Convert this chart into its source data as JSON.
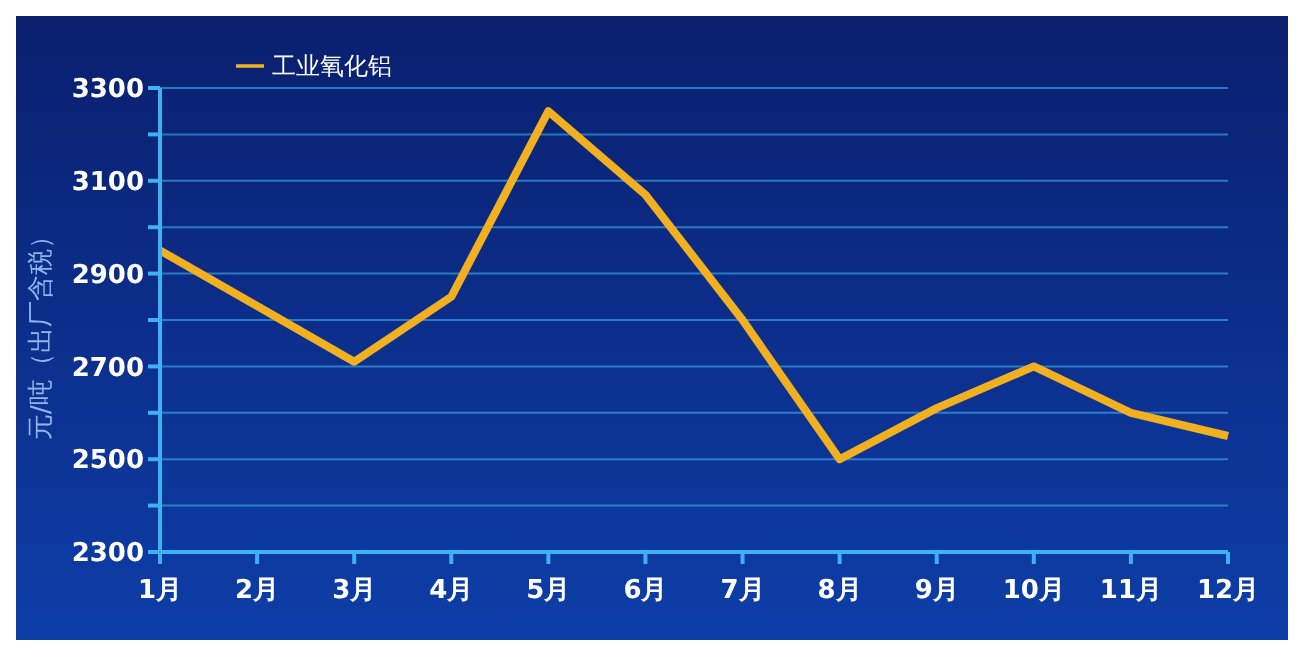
{
  "chart_data": {
    "type": "line",
    "ylabel": "元/吨（出厂含税）",
    "categories": [
      "1月",
      "2月",
      "3月",
      "4月",
      "5月",
      "6月",
      "7月",
      "8月",
      "9月",
      "10月",
      "11月",
      "12月"
    ],
    "series": [
      {
        "name": "工业氧化铝",
        "color": "#f0b020",
        "values": [
          2950,
          2830,
          2710,
          2850,
          3250,
          3070,
          2800,
          2500,
          2610,
          2700,
          2600,
          2550
        ]
      }
    ],
    "ylim": [
      2300,
      3300
    ],
    "yticks": [
      2300,
      {
        "value": 2400,
        "label": null
      },
      2500,
      {
        "value": 2600,
        "label": null
      },
      2700,
      {
        "value": 2800,
        "label": null
      },
      2900,
      {
        "value": 3000,
        "label": null
      },
      3100,
      {
        "value": 3200,
        "label": null
      },
      3300
    ],
    "grid": "y",
    "legend": "top left",
    "marker": "none",
    "line_style": "solid"
  }
}
